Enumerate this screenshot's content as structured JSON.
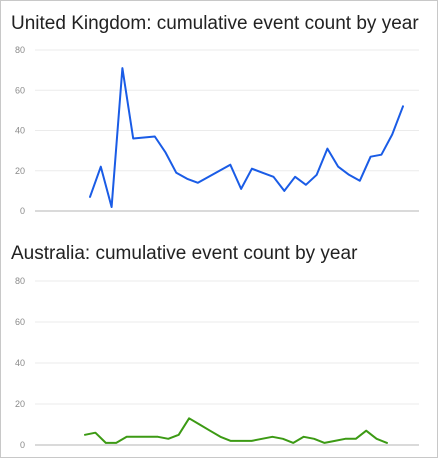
{
  "chart_data": [
    {
      "type": "line",
      "title": "United Kingdom: cumulative event count by year",
      "xlabel": "",
      "ylabel": "",
      "ylim": [
        0,
        80
      ],
      "yticks": [
        "0",
        "20",
        "40",
        "60",
        "80"
      ],
      "grid": true,
      "legend": "none",
      "series": [
        {
          "color": "#1a5ce6",
          "values": [
            7,
            22,
            2,
            71,
            36,
            36.5,
            37,
            29,
            19,
            16,
            14,
            17,
            20,
            23,
            11,
            21,
            19,
            17,
            10,
            17,
            13,
            18,
            31,
            22,
            18,
            15,
            27,
            28,
            38,
            52
          ]
        }
      ]
    },
    {
      "type": "line",
      "title": "Australia: cumulative event count by year",
      "xlabel": "",
      "ylabel": "",
      "ylim": [
        0,
        80
      ],
      "yticks": [
        "0",
        "20",
        "40",
        "60",
        "80"
      ],
      "grid": true,
      "legend": "none",
      "series": [
        {
          "color": "#3c9a14",
          "values": [
            5,
            6,
            1,
            1,
            4,
            4,
            4,
            4,
            3,
            5,
            13,
            10,
            7,
            4,
            2,
            2,
            2,
            3,
            4,
            3,
            1,
            4,
            3,
            1,
            2,
            3,
            3,
            7,
            3,
            1
          ]
        }
      ]
    }
  ]
}
